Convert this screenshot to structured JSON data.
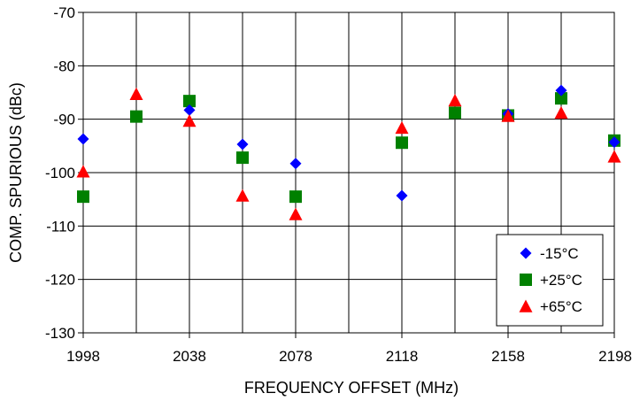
{
  "chart_data": {
    "type": "scatter",
    "xlabel": "FREQUENCY OFFSET (MHz)",
    "ylabel": "COMP. SPURIOUS (dBc)",
    "xlim": [
      1998,
      2198
    ],
    "ylim": [
      -130,
      -70
    ],
    "x_ticks": [
      1998,
      2038,
      2078,
      2118,
      2158,
      2198
    ],
    "x_ticks_display": [
      "1998",
      "2038",
      "2078",
      "2118",
      "2158",
      "2198"
    ],
    "x_gridlines": [
      1998,
      2018,
      2038,
      2058,
      2078,
      2098,
      2118,
      2138,
      2158,
      2178,
      2198
    ],
    "y_ticks": [
      -70,
      -80,
      -90,
      -100,
      -110,
      -120,
      -130
    ],
    "y_ticks_display": [
      "-70",
      "-80",
      "-90",
      "-100",
      "-110",
      "-120",
      "-130"
    ],
    "grid": true,
    "legend_position": "bottom-right",
    "series": [
      {
        "name": "-15°C",
        "marker": "diamond",
        "color": "#0000FF",
        "points": [
          [
            1998,
            -93.7
          ],
          [
            2038,
            -88.3
          ],
          [
            2058,
            -94.7
          ],
          [
            2078,
            -98.3
          ],
          [
            2118,
            -104.3
          ],
          [
            2158,
            -89.0
          ],
          [
            2178,
            -84.6
          ],
          [
            2198,
            -94.3
          ]
        ]
      },
      {
        "name": "+25°C",
        "marker": "square",
        "color": "#008000",
        "points": [
          [
            1998,
            -104.5
          ],
          [
            2018,
            -89.5
          ],
          [
            2038,
            -86.6
          ],
          [
            2058,
            -97.2
          ],
          [
            2078,
            -104.5
          ],
          [
            2118,
            -94.4
          ],
          [
            2138,
            -88.8
          ],
          [
            2158,
            -89.3
          ],
          [
            2178,
            -86.1
          ],
          [
            2198,
            -94.0
          ]
        ]
      },
      {
        "name": "+65°C",
        "marker": "triangle",
        "color": "#FF0000",
        "points": [
          [
            1998,
            -99.8
          ],
          [
            2018,
            -85.3
          ],
          [
            2038,
            -90.3
          ],
          [
            2058,
            -104.3
          ],
          [
            2078,
            -107.8
          ],
          [
            2118,
            -91.6
          ],
          [
            2138,
            -86.5
          ],
          [
            2158,
            -89.4
          ],
          [
            2178,
            -88.8
          ],
          [
            2198,
            -97.0
          ]
        ]
      }
    ]
  }
}
